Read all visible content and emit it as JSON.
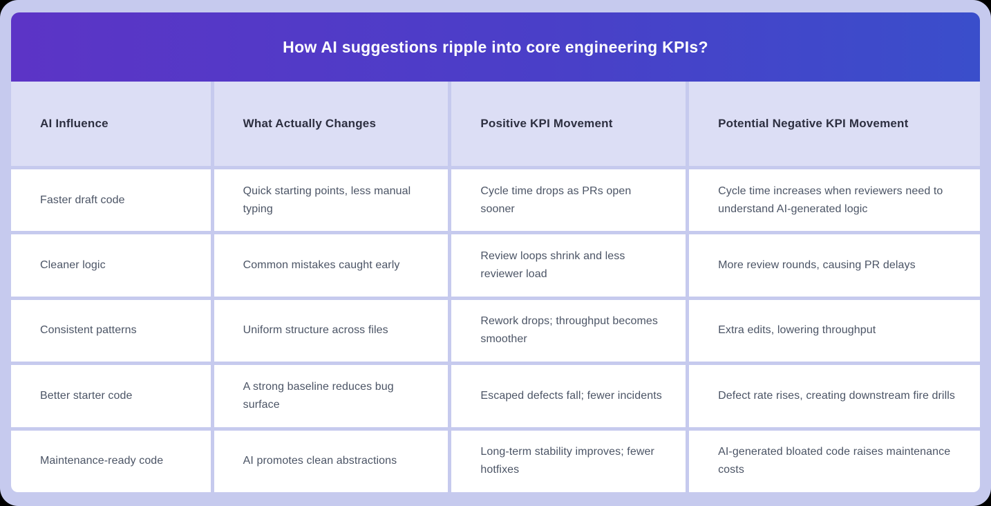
{
  "colors": {
    "page_background": "#000000",
    "frame": "#c6caee",
    "band_gradient_start": "#5c34c6",
    "band_gradient_end": "#3a4ecb",
    "header_row_bg": "#dcdef5",
    "cell_bg": "#ffffff",
    "title_text": "#ffffff",
    "header_text": "#2d2f40",
    "body_text": "#4b5465"
  },
  "chart_data": {
    "type": "table",
    "title": "How AI suggestions ripple into core engineering KPIs?",
    "columns": [
      "AI Influence",
      "What Actually Changes",
      "Positive KPI Movement",
      "Potential Negative KPI Movement"
    ],
    "rows": [
      [
        "Faster draft code",
        "Quick starting points, less manual typing",
        "Cycle time drops as PRs open sooner",
        "Cycle time increases when reviewers need to understand AI-generated logic"
      ],
      [
        "Cleaner logic",
        "Common mistakes caught early",
        "Review loops shrink and less reviewer load",
        "More review rounds, causing PR delays"
      ],
      [
        "Consistent patterns",
        "Uniform structure across files",
        "Rework drops; throughput becomes smoother",
        "Extra edits, lowering throughput"
      ],
      [
        "Better starter code",
        "A strong baseline reduces bug surface",
        "Escaped defects fall; fewer incidents",
        "Defect rate rises, creating downstream fire drills"
      ],
      [
        "Maintenance-ready code",
        "AI promotes clean abstractions",
        "Long-term stability improves; fewer hotfixes",
        "AI-generated bloated code raises maintenance costs"
      ]
    ]
  }
}
